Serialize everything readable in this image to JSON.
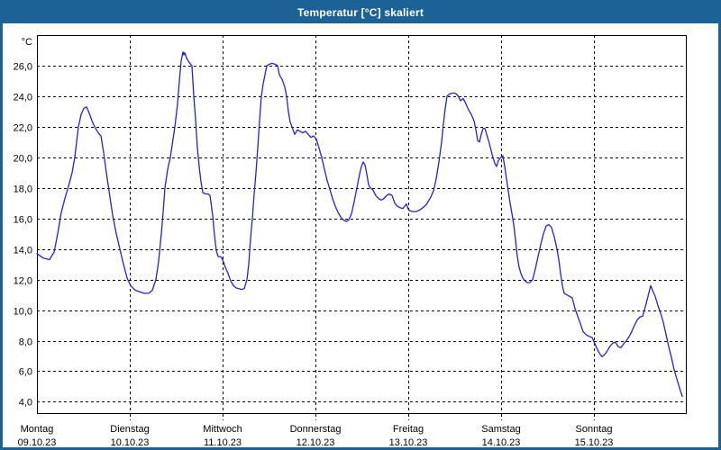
{
  "window": {
    "title": "Temperatur [°C] skaliert"
  },
  "colors": {
    "chrome": "#1c6296",
    "titlebar_text": "#ffffff",
    "curve": "#2424c8",
    "grid": "#000000",
    "axis_text": "#000000",
    "plot_background": "#ffffff"
  },
  "chart_data": {
    "type": "line",
    "title": "Temperatur [°C] skaliert",
    "y_unit_label": "°C",
    "ylabel_format": "comma-decimal",
    "yticks": [
      26,
      24,
      22,
      20,
      18,
      16,
      14,
      12,
      10,
      8,
      6,
      4
    ],
    "ytick_labels": [
      "26,0",
      "24,0",
      "22,0",
      "20,0",
      "18,0",
      "16,0",
      "14,0",
      "12,0",
      "10,0",
      "8,0",
      "6,0",
      "4,0"
    ],
    "ylim": [
      3.2,
      28.0
    ],
    "xlim_days": [
      0,
      7
    ],
    "grid": "dashed",
    "legend_position": "none",
    "x_axis_days": [
      {
        "name": "Montag",
        "date": "09.10.23"
      },
      {
        "name": "Dienstag",
        "date": "10.10.23"
      },
      {
        "name": "Mittwoch",
        "date": "11.10.23"
      },
      {
        "name": "Donnerstag",
        "date": "12.10.23"
      },
      {
        "name": "Freitag",
        "date": "13.10.23"
      },
      {
        "name": "Samstag",
        "date": "14.10.23"
      },
      {
        "name": "Sonntag",
        "date": "15.10.23"
      }
    ],
    "series": [
      {
        "name": "Temperatur",
        "unit": "°C",
        "points": [
          [
            0.0,
            13.7
          ],
          [
            0.068,
            13.4
          ],
          [
            0.136,
            13.3
          ],
          [
            0.184,
            13.8
          ],
          [
            0.223,
            15.0
          ],
          [
            0.262,
            16.4
          ],
          [
            0.301,
            17.3
          ],
          [
            0.34,
            18.1
          ],
          [
            0.379,
            19.0
          ],
          [
            0.408,
            20.0
          ],
          [
            0.447,
            22.0
          ],
          [
            0.476,
            22.8
          ],
          [
            0.505,
            23.2
          ],
          [
            0.534,
            23.3
          ],
          [
            0.563,
            22.9
          ],
          [
            0.592,
            22.4
          ],
          [
            0.621,
            22.0
          ],
          [
            0.66,
            21.6
          ],
          [
            0.689,
            21.4
          ],
          [
            0.718,
            20.3
          ],
          [
            0.748,
            19.0
          ],
          [
            0.777,
            17.8
          ],
          [
            0.816,
            16.2
          ],
          [
            0.854,
            15.0
          ],
          [
            0.893,
            14.0
          ],
          [
            0.932,
            13.0
          ],
          [
            0.971,
            12.1
          ],
          [
            1.01,
            11.6
          ],
          [
            1.058,
            11.3
          ],
          [
            1.107,
            11.2
          ],
          [
            1.155,
            11.1
          ],
          [
            1.204,
            11.1
          ],
          [
            1.243,
            11.3
          ],
          [
            1.282,
            12.0
          ],
          [
            1.311,
            13.2
          ],
          [
            1.34,
            15.0
          ],
          [
            1.359,
            16.4
          ],
          [
            1.379,
            18.0
          ],
          [
            1.408,
            19.2
          ],
          [
            1.437,
            20.0
          ],
          [
            1.466,
            21.2
          ],
          [
            1.485,
            22.0
          ],
          [
            1.515,
            23.5
          ],
          [
            1.534,
            25.0
          ],
          [
            1.553,
            26.3
          ],
          [
            1.573,
            26.9
          ],
          [
            1.583,
            26.7
          ],
          [
            1.592,
            26.85
          ],
          [
            1.612,
            26.5
          ],
          [
            1.641,
            26.2
          ],
          [
            1.67,
            26.0
          ],
          [
            1.689,
            24.0
          ],
          [
            1.709,
            22.5
          ],
          [
            1.728,
            20.6
          ],
          [
            1.748,
            19.4
          ],
          [
            1.767,
            18.4
          ],
          [
            1.786,
            17.7
          ],
          [
            1.816,
            17.6
          ],
          [
            1.845,
            17.6
          ],
          [
            1.864,
            17.5
          ],
          [
            1.893,
            16.2
          ],
          [
            1.913,
            14.9
          ],
          [
            1.932,
            13.9
          ],
          [
            1.951,
            13.5
          ],
          [
            1.981,
            13.5
          ],
          [
            2.0,
            13.3
          ],
          [
            2.029,
            12.8
          ],
          [
            2.058,
            12.4
          ],
          [
            2.087,
            11.9
          ],
          [
            2.117,
            11.6
          ],
          [
            2.146,
            11.45
          ],
          [
            2.175,
            11.4
          ],
          [
            2.204,
            11.35
          ],
          [
            2.233,
            11.4
          ],
          [
            2.262,
            12.0
          ],
          [
            2.282,
            13.0
          ],
          [
            2.301,
            14.7
          ],
          [
            2.32,
            16.0
          ],
          [
            2.34,
            17.6
          ],
          [
            2.359,
            19.0
          ],
          [
            2.379,
            20.6
          ],
          [
            2.398,
            22.4
          ],
          [
            2.417,
            24.0
          ],
          [
            2.437,
            24.8
          ],
          [
            2.456,
            25.4
          ],
          [
            2.476,
            26.0
          ],
          [
            2.505,
            26.1
          ],
          [
            2.534,
            26.15
          ],
          [
            2.563,
            26.1
          ],
          [
            2.592,
            26.0
          ],
          [
            2.612,
            25.4
          ],
          [
            2.641,
            25.1
          ],
          [
            2.67,
            24.6
          ],
          [
            2.689,
            24.0
          ],
          [
            2.709,
            23.0
          ],
          [
            2.728,
            22.3
          ],
          [
            2.748,
            22.0
          ],
          [
            2.777,
            21.5
          ],
          [
            2.806,
            21.8
          ],
          [
            2.835,
            21.7
          ],
          [
            2.864,
            21.6
          ],
          [
            2.893,
            21.7
          ],
          [
            2.922,
            21.5
          ],
          [
            2.951,
            21.3
          ],
          [
            2.981,
            21.4
          ],
          [
            3.01,
            21.2
          ],
          [
            3.039,
            20.6
          ],
          [
            3.068,
            20.0
          ],
          [
            3.097,
            19.2
          ],
          [
            3.126,
            18.5
          ],
          [
            3.155,
            17.9
          ],
          [
            3.184,
            17.3
          ],
          [
            3.214,
            16.8
          ],
          [
            3.243,
            16.4
          ],
          [
            3.272,
            16.1
          ],
          [
            3.301,
            15.9
          ],
          [
            3.33,
            15.8
          ],
          [
            3.359,
            15.9
          ],
          [
            3.388,
            16.3
          ],
          [
            3.417,
            17.1
          ],
          [
            3.447,
            18.0
          ],
          [
            3.476,
            18.9
          ],
          [
            3.495,
            19.4
          ],
          [
            3.515,
            19.7
          ],
          [
            3.534,
            19.5
          ],
          [
            3.553,
            18.9
          ],
          [
            3.573,
            18.2
          ],
          [
            3.592,
            18.0
          ],
          [
            3.621,
            17.85
          ],
          [
            3.65,
            17.5
          ],
          [
            3.68,
            17.3
          ],
          [
            3.709,
            17.2
          ],
          [
            3.738,
            17.3
          ],
          [
            3.767,
            17.5
          ],
          [
            3.796,
            17.6
          ],
          [
            3.825,
            17.5
          ],
          [
            3.854,
            17.0
          ],
          [
            3.883,
            16.8
          ],
          [
            3.913,
            16.7
          ],
          [
            3.942,
            16.65
          ],
          [
            3.961,
            16.8
          ],
          [
            3.981,
            16.95
          ],
          [
            4.0,
            16.6
          ],
          [
            4.019,
            16.5
          ],
          [
            4.049,
            16.45
          ],
          [
            4.078,
            16.45
          ],
          [
            4.107,
            16.5
          ],
          [
            4.136,
            16.6
          ],
          [
            4.165,
            16.75
          ],
          [
            4.194,
            16.9
          ],
          [
            4.214,
            17.1
          ],
          [
            4.243,
            17.4
          ],
          [
            4.272,
            17.8
          ],
          [
            4.301,
            18.6
          ],
          [
            4.33,
            19.7
          ],
          [
            4.359,
            21.0
          ],
          [
            4.379,
            22.2
          ],
          [
            4.398,
            23.2
          ],
          [
            4.417,
            24.0
          ],
          [
            4.447,
            24.15
          ],
          [
            4.476,
            24.2
          ],
          [
            4.505,
            24.2
          ],
          [
            4.534,
            24.05
          ],
          [
            4.563,
            23.7
          ],
          [
            4.592,
            23.85
          ],
          [
            4.621,
            23.5
          ],
          [
            4.65,
            23.1
          ],
          [
            4.68,
            22.8
          ],
          [
            4.709,
            22.4
          ],
          [
            4.728,
            21.8
          ],
          [
            4.748,
            21.1
          ],
          [
            4.767,
            21.0
          ],
          [
            4.786,
            21.5
          ],
          [
            4.806,
            21.9
          ],
          [
            4.825,
            21.9
          ],
          [
            4.845,
            21.5
          ],
          [
            4.874,
            20.9
          ],
          [
            4.903,
            20.2
          ],
          [
            4.932,
            19.6
          ],
          [
            4.951,
            19.4
          ],
          [
            4.971,
            19.8
          ],
          [
            5.0,
            20.0
          ],
          [
            5.019,
            20.1
          ],
          [
            5.039,
            19.4
          ],
          [
            5.058,
            18.6
          ],
          [
            5.078,
            17.8
          ],
          [
            5.097,
            17.0
          ],
          [
            5.117,
            16.3
          ],
          [
            5.136,
            15.6
          ],
          [
            5.155,
            14.6
          ],
          [
            5.175,
            13.5
          ],
          [
            5.194,
            12.8
          ],
          [
            5.214,
            12.4
          ],
          [
            5.233,
            12.1
          ],
          [
            5.252,
            11.95
          ],
          [
            5.282,
            11.8
          ],
          [
            5.311,
            11.8
          ],
          [
            5.34,
            12.0
          ],
          [
            5.369,
            12.7
          ],
          [
            5.398,
            13.5
          ],
          [
            5.427,
            14.3
          ],
          [
            5.456,
            15.0
          ],
          [
            5.485,
            15.5
          ],
          [
            5.515,
            15.6
          ],
          [
            5.544,
            15.4
          ],
          [
            5.573,
            14.8
          ],
          [
            5.602,
            14.0
          ],
          [
            5.621,
            13.3
          ],
          [
            5.641,
            12.4
          ],
          [
            5.66,
            11.6
          ],
          [
            5.68,
            11.1
          ],
          [
            5.709,
            11.0
          ],
          [
            5.738,
            10.9
          ],
          [
            5.767,
            10.8
          ],
          [
            5.796,
            10.1
          ],
          [
            5.825,
            9.6
          ],
          [
            5.854,
            9.1
          ],
          [
            5.883,
            8.6
          ],
          [
            5.913,
            8.4
          ],
          [
            5.942,
            8.3
          ],
          [
            5.961,
            8.25
          ],
          [
            5.981,
            8.2
          ],
          [
            6.01,
            7.8
          ],
          [
            6.039,
            7.4
          ],
          [
            6.068,
            7.1
          ],
          [
            6.087,
            6.95
          ],
          [
            6.117,
            7.1
          ],
          [
            6.146,
            7.35
          ],
          [
            6.175,
            7.65
          ],
          [
            6.204,
            7.85
          ],
          [
            6.233,
            7.9
          ],
          [
            6.262,
            7.6
          ],
          [
            6.291,
            7.55
          ],
          [
            6.32,
            7.8
          ],
          [
            6.35,
            8.0
          ],
          [
            6.379,
            8.25
          ],
          [
            6.408,
            8.6
          ],
          [
            6.437,
            9.0
          ],
          [
            6.466,
            9.35
          ],
          [
            6.495,
            9.55
          ],
          [
            6.524,
            9.6
          ],
          [
            6.553,
            10.2
          ],
          [
            6.583,
            10.9
          ],
          [
            6.612,
            11.6
          ],
          [
            6.631,
            11.3
          ],
          [
            6.66,
            10.9
          ],
          [
            6.689,
            10.3
          ],
          [
            6.718,
            9.8
          ],
          [
            6.748,
            9.2
          ],
          [
            6.777,
            8.4
          ],
          [
            6.806,
            7.6
          ],
          [
            6.835,
            6.9
          ],
          [
            6.864,
            6.1
          ],
          [
            6.893,
            5.5
          ],
          [
            6.922,
            4.9
          ],
          [
            6.951,
            4.35
          ]
        ]
      }
    ]
  }
}
